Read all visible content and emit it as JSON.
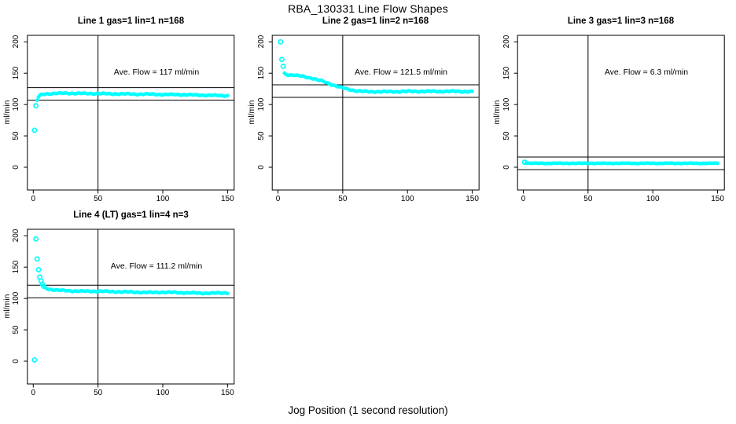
{
  "page": {
    "main_title": "RBA_130331  Line Flow Shapes",
    "bottom_axis_label": "Jog Position (1 second resolution)",
    "background_color": "#ffffff"
  },
  "colors": {
    "points": "#00ffff",
    "axis": "#000000",
    "reference_lines": "#000000",
    "text": "#000000"
  },
  "chart_data": {
    "type": "scatter",
    "layout": "2x2 panel grid, R base-graphics style, shared axes ranges",
    "y_axis_label": "ml/min",
    "x_ticks": [
      0,
      50,
      100,
      150
    ],
    "y_ticks": [
      0,
      50,
      100,
      150,
      200
    ],
    "xlim": [
      -4,
      155
    ],
    "ylim": [
      -36,
      210
    ],
    "vline_x": 50,
    "marker": "small cyan open circles forming a dense band",
    "panels": [
      {
        "title": "Line 1 gas=1 lin=1 n=168",
        "ave_flow": 117,
        "annotation": "Ave. Flow =  117  ml/min",
        "hlines": [
          127,
          107
        ],
        "outliers": [
          [
            1,
            59
          ],
          [
            2,
            98
          ]
        ],
        "trend": [
          [
            3,
            107
          ],
          [
            4,
            112
          ],
          [
            5,
            114
          ],
          [
            6,
            115.5
          ],
          [
            8,
            116.5
          ],
          [
            10,
            117
          ],
          [
            15,
            117.5
          ],
          [
            20,
            118
          ],
          [
            30,
            118
          ],
          [
            40,
            117.5
          ],
          [
            50,
            117.5
          ],
          [
            60,
            117
          ],
          [
            70,
            117
          ],
          [
            80,
            116.5
          ],
          [
            90,
            116.5
          ],
          [
            100,
            116
          ],
          [
            110,
            116
          ],
          [
            120,
            115.5
          ],
          [
            130,
            115
          ],
          [
            140,
            114.5
          ],
          [
            150,
            114
          ]
        ]
      },
      {
        "title": "Line 2 gas=1 lin=2 n=168",
        "ave_flow": 121.5,
        "annotation": "Ave. Flow =  121.5  ml/min",
        "hlines": [
          131.5,
          111.5
        ],
        "outliers": [
          [
            2,
            200
          ],
          [
            3,
            172
          ],
          [
            4,
            161
          ]
        ],
        "trend": [
          [
            5,
            150
          ],
          [
            6,
            148.5
          ],
          [
            8,
            147.5
          ],
          [
            10,
            147
          ],
          [
            12,
            147
          ],
          [
            15,
            146
          ],
          [
            18,
            145.5
          ],
          [
            20,
            144.5
          ],
          [
            25,
            142.5
          ],
          [
            28,
            141
          ],
          [
            30,
            139.5
          ],
          [
            33,
            138
          ],
          [
            36,
            136
          ],
          [
            39,
            134
          ],
          [
            42,
            131.5
          ],
          [
            45,
            129.5
          ],
          [
            48,
            127.5
          ],
          [
            50,
            126.5
          ],
          [
            53,
            125
          ],
          [
            56,
            123.5
          ],
          [
            60,
            122
          ],
          [
            65,
            121
          ],
          [
            70,
            120.5
          ],
          [
            80,
            120.5
          ],
          [
            90,
            120.5
          ],
          [
            100,
            121
          ],
          [
            110,
            121
          ],
          [
            120,
            121
          ],
          [
            130,
            121
          ],
          [
            140,
            121
          ],
          [
            150,
            120.5
          ]
        ]
      },
      {
        "title": "Line 3 gas=1 lin=3 n=168",
        "ave_flow": 6.3,
        "annotation": "Ave. Flow =  6.3  ml/min",
        "hlines": [
          16.3,
          -3.7
        ],
        "outliers": [
          [
            1,
            8
          ]
        ],
        "trend": [
          [
            2,
            7
          ],
          [
            4,
            6.5
          ],
          [
            8,
            6.3
          ],
          [
            20,
            6.3
          ],
          [
            50,
            6.3
          ],
          [
            100,
            6.3
          ],
          [
            150,
            6.3
          ]
        ]
      },
      {
        "title": "Line 4 (LT) gas=1 lin=4 n=3",
        "ave_flow": 111.2,
        "annotation": "Ave. Flow =  111.2  ml/min",
        "hlines": [
          121.2,
          101.2
        ],
        "outliers": [
          [
            1,
            2
          ],
          [
            2,
            195
          ],
          [
            3,
            163
          ],
          [
            4,
            146
          ],
          [
            5,
            134
          ],
          [
            6,
            128
          ],
          [
            7,
            123
          ],
          [
            8,
            119.5
          ]
        ],
        "trend": [
          [
            9,
            117.5
          ],
          [
            10,
            116.5
          ],
          [
            12,
            115
          ],
          [
            15,
            114
          ],
          [
            20,
            113
          ],
          [
            25,
            112.5
          ],
          [
            30,
            112
          ],
          [
            40,
            111.5
          ],
          [
            50,
            111.5
          ],
          [
            60,
            111
          ],
          [
            70,
            110.5
          ],
          [
            80,
            110
          ],
          [
            90,
            109.5
          ],
          [
            100,
            110
          ],
          [
            110,
            109.5
          ],
          [
            120,
            109
          ],
          [
            130,
            108.5
          ],
          [
            140,
            108.5
          ],
          [
            150,
            109
          ]
        ]
      }
    ]
  }
}
